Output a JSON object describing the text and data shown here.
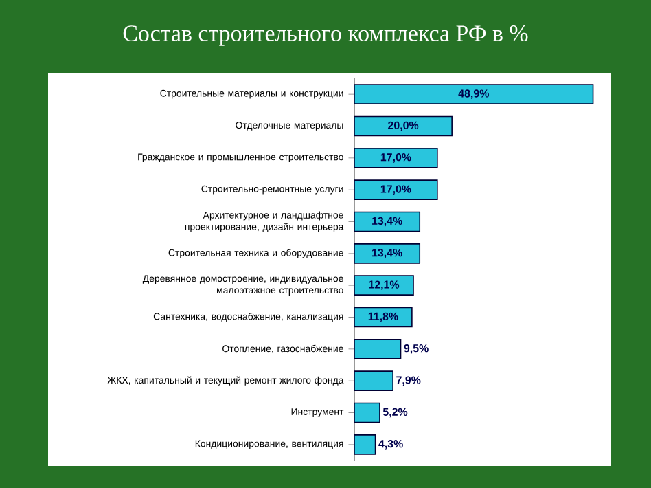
{
  "chart_data": {
    "type": "bar",
    "orientation": "horizontal",
    "title": "Состав строительного комплекса РФ в %",
    "categories": [
      "Строительные материалы и конструкции",
      "Отделочные материалы",
      "Гражданское и промышленное строительство",
      "Строительно-ремонтные услуги",
      "Архитектурное и ландшафтное проектирование, дизайн интерьера",
      "Строительная техника и оборудование",
      "Деревянное домостроение, индивидуальное малоэтажное строительство",
      "Сантехника, водоснабжение, канализация",
      "Отопление, газоснабжение",
      "ЖКХ, капитальный и текущий ремонт жилого фонда",
      "Инструмент",
      "Кондиционирование, вентиляция"
    ],
    "values": [
      48.9,
      20.0,
      17.0,
      17.0,
      13.4,
      13.4,
      12.1,
      11.8,
      9.5,
      7.9,
      5.2,
      4.3
    ],
    "value_labels": [
      "48,9%",
      "20,0%",
      "17,0%",
      "17,0%",
      "13,4%",
      "13,4%",
      "12,1%",
      "11,8%",
      "9,5%",
      "7,9%",
      "5,2%",
      "4,3%"
    ],
    "color": "#29c5dd",
    "tick_labels": "y"
  }
}
